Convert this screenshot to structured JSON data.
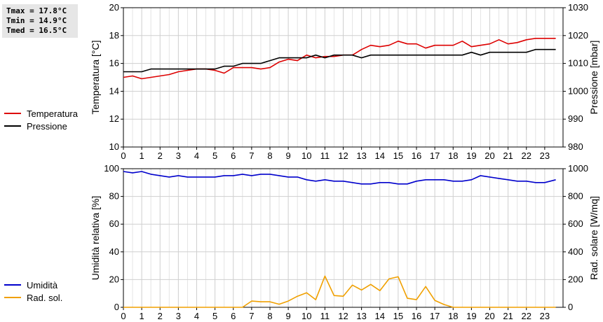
{
  "stats": {
    "tmax": "Tmax = 17.8°C",
    "tmin": "Tmin = 14.9°C",
    "tmed": "Tmed = 16.5°C"
  },
  "legend_top": [
    {
      "label": "Temperatura",
      "color": "#dd0000"
    },
    {
      "label": "Pressione",
      "color": "#000000"
    }
  ],
  "legend_bottom": [
    {
      "label": "Umidità",
      "color": "#0000cc"
    },
    {
      "label": "Rad. sol.",
      "color": "#f0a000"
    }
  ],
  "chart_data": [
    {
      "type": "line",
      "xlabel": "",
      "xlim": [
        0,
        24
      ],
      "x_ticks": [
        "0",
        "1",
        "2",
        "3",
        "4",
        "5",
        "6",
        "7",
        "8",
        "9",
        "10",
        "11",
        "12",
        "13",
        "14",
        "15",
        "16",
        "17",
        "18",
        "19",
        "20",
        "21",
        "22",
        "23"
      ],
      "left_axis": {
        "label": "Temperatura [°C]",
        "ylim": [
          10,
          20
        ],
        "ticks": [
          "10",
          "12",
          "14",
          "16",
          "18",
          "20"
        ]
      },
      "right_axis": {
        "label": "Pressione [mbar]",
        "ylim": [
          980,
          1030
        ],
        "ticks": [
          "980",
          "990",
          "1000",
          "1010",
          "1020",
          "1030"
        ]
      },
      "grid": true,
      "series": [
        {
          "name": "Temperatura",
          "axis": "left",
          "color": "#dd0000",
          "x": [
            0,
            0.5,
            1,
            1.5,
            2,
            2.5,
            3,
            3.5,
            4,
            4.5,
            5,
            5.5,
            6,
            6.5,
            7,
            7.5,
            8,
            8.5,
            9,
            9.5,
            10,
            10.5,
            11,
            11.5,
            12,
            12.5,
            13,
            13.5,
            14,
            14.5,
            15,
            15.5,
            16,
            16.5,
            17,
            17.5,
            18,
            18.5,
            19,
            19.5,
            20,
            20.5,
            21,
            21.5,
            22,
            22.5,
            23,
            23.6
          ],
          "y": [
            15.0,
            15.1,
            14.9,
            15.0,
            15.1,
            15.2,
            15.4,
            15.5,
            15.6,
            15.6,
            15.5,
            15.3,
            15.7,
            15.7,
            15.7,
            15.6,
            15.7,
            16.1,
            16.3,
            16.2,
            16.6,
            16.4,
            16.5,
            16.5,
            16.6,
            16.6,
            17.0,
            17.3,
            17.2,
            17.3,
            17.6,
            17.4,
            17.4,
            17.1,
            17.3,
            17.3,
            17.3,
            17.6,
            17.2,
            17.3,
            17.4,
            17.7,
            17.4,
            17.5,
            17.7,
            17.8,
            17.8,
            17.8
          ]
        },
        {
          "name": "Pressione",
          "axis": "right",
          "color": "#000000",
          "x": [
            0,
            0.5,
            1,
            1.5,
            2,
            2.5,
            3,
            3.5,
            4,
            4.5,
            5,
            5.5,
            6,
            6.5,
            7,
            7.5,
            8,
            8.5,
            9,
            9.5,
            10,
            10.5,
            11,
            11.5,
            12,
            12.5,
            13,
            13.5,
            14,
            14.5,
            15,
            15.5,
            16,
            16.5,
            17,
            17.5,
            18,
            18.5,
            19,
            19.5,
            20,
            20.5,
            21,
            21.5,
            22,
            22.5,
            23,
            23.6
          ],
          "y": [
            1007,
            1007,
            1007,
            1008,
            1008,
            1008,
            1008,
            1008,
            1008,
            1008,
            1008,
            1009,
            1009,
            1010,
            1010,
            1010,
            1011,
            1012,
            1012,
            1012,
            1012,
            1013,
            1012,
            1013,
            1013,
            1013,
            1012,
            1013,
            1013,
            1013,
            1013,
            1013,
            1013,
            1013,
            1013,
            1013,
            1013,
            1013,
            1014,
            1013,
            1014,
            1014,
            1014,
            1014,
            1014,
            1015,
            1015,
            1015
          ]
        }
      ]
    },
    {
      "type": "line",
      "xlabel": "",
      "xlim": [
        0,
        24
      ],
      "x_ticks": [
        "0",
        "1",
        "2",
        "3",
        "4",
        "5",
        "6",
        "7",
        "8",
        "9",
        "10",
        "11",
        "12",
        "13",
        "14",
        "15",
        "16",
        "17",
        "18",
        "19",
        "20",
        "21",
        "22",
        "23"
      ],
      "left_axis": {
        "label": "Umidità relativa [%]",
        "ylim": [
          0,
          100
        ],
        "ticks": [
          "0",
          "20",
          "40",
          "60",
          "80",
          "100"
        ]
      },
      "right_axis": {
        "label": "Rad. solare [W/mq]",
        "ylim": [
          0,
          1000
        ],
        "ticks": [
          "0",
          "200",
          "400",
          "600",
          "800",
          "1000"
        ]
      },
      "grid": true,
      "series": [
        {
          "name": "Umidità",
          "axis": "left",
          "color": "#0000cc",
          "x": [
            0,
            0.5,
            1,
            1.5,
            2,
            2.5,
            3,
            3.5,
            4,
            4.5,
            5,
            5.5,
            6,
            6.5,
            7,
            7.5,
            8,
            8.5,
            9,
            9.5,
            10,
            10.5,
            11,
            11.5,
            12,
            12.5,
            13,
            13.5,
            14,
            14.5,
            15,
            15.5,
            16,
            16.5,
            17,
            17.5,
            18,
            18.5,
            19,
            19.5,
            20,
            20.5,
            21,
            21.5,
            22,
            22.5,
            23,
            23.6
          ],
          "y": [
            98,
            97,
            98,
            96,
            95,
            94,
            95,
            94,
            94,
            94,
            94,
            95,
            95,
            96,
            95,
            96,
            96,
            95,
            94,
            94,
            92,
            91,
            92,
            91,
            91,
            90,
            89,
            89,
            90,
            90,
            89,
            89,
            91,
            92,
            92,
            92,
            91,
            91,
            92,
            95,
            94,
            93,
            92,
            91,
            91,
            90,
            90,
            92
          ]
        },
        {
          "name": "Rad. sol.",
          "axis": "right",
          "color": "#f0a000",
          "x": [
            0,
            1,
            2,
            3,
            4,
            5,
            6,
            6.5,
            7,
            7.5,
            8,
            8.5,
            9,
            9.5,
            10,
            10.5,
            11,
            11.5,
            12,
            12.5,
            13,
            13.5,
            14,
            14.5,
            15,
            15.5,
            16,
            16.5,
            17,
            17.5,
            18,
            19,
            20,
            21,
            22,
            23,
            23.6
          ],
          "y": [
            0,
            0,
            0,
            0,
            0,
            0,
            0,
            0,
            45,
            40,
            40,
            22,
            45,
            80,
            105,
            55,
            225,
            85,
            80,
            160,
            125,
            165,
            120,
            205,
            220,
            65,
            55,
            150,
            50,
            20,
            0,
            0,
            0,
            0,
            0,
            0,
            0
          ]
        }
      ]
    }
  ]
}
